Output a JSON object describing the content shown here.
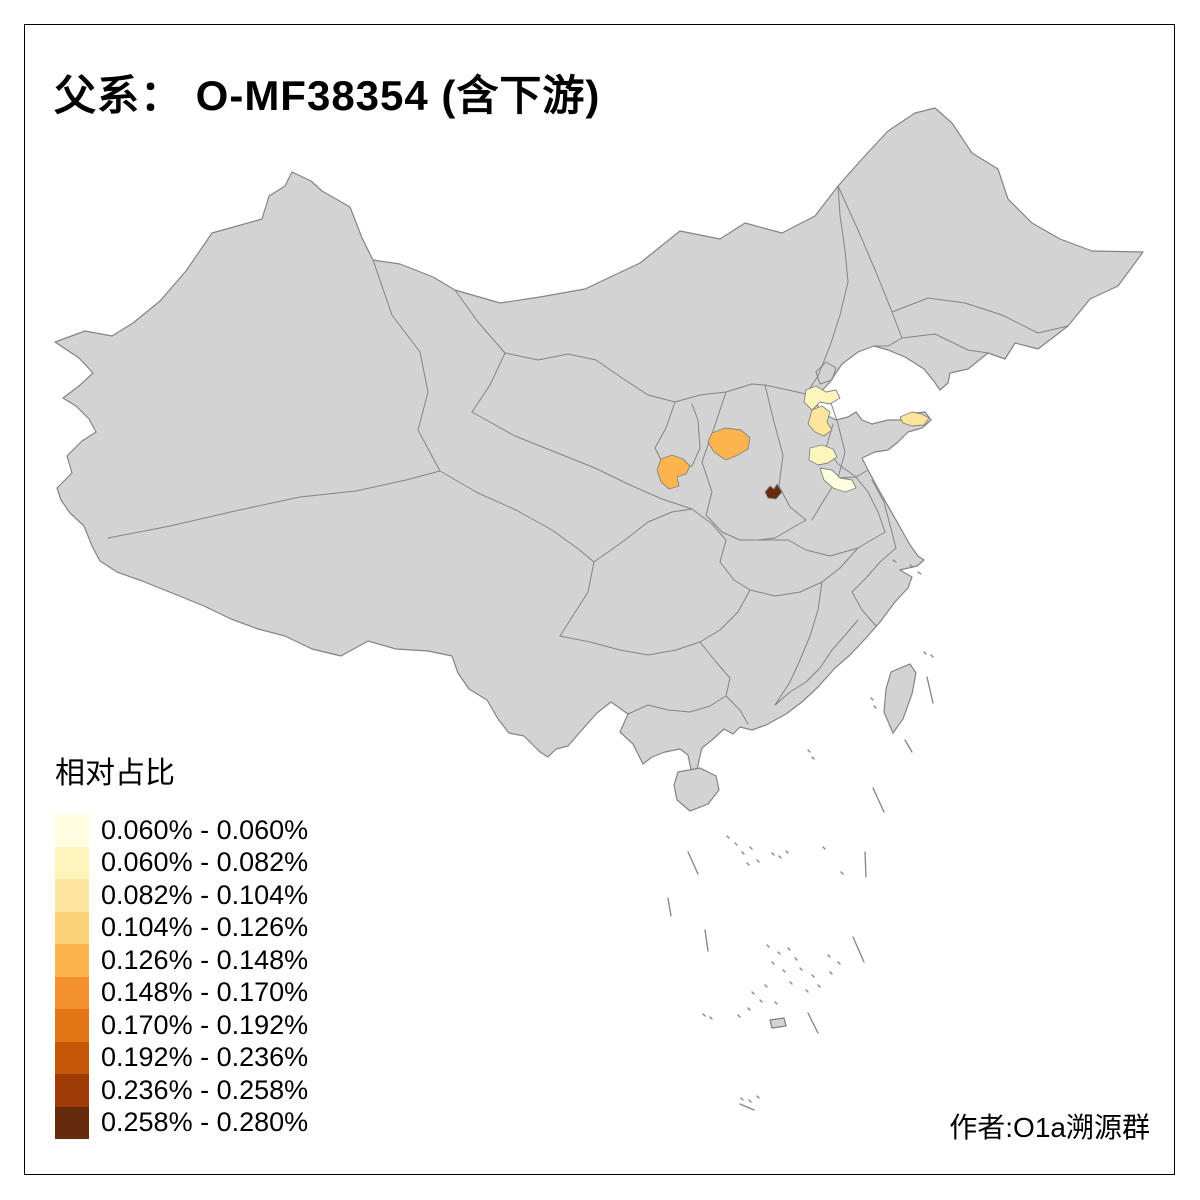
{
  "title": "父系： O-MF38354 (含下游)",
  "legend": {
    "title": "相对占比",
    "items": [
      {
        "label": "0.060% - 0.060%",
        "color": "#FFFEE0"
      },
      {
        "label": "0.060% - 0.082%",
        "color": "#FEF5BC"
      },
      {
        "label": "0.082% - 0.104%",
        "color": "#FDE69C"
      },
      {
        "label": "0.104% - 0.126%",
        "color": "#FDD276"
      },
      {
        "label": "0.126% - 0.148%",
        "color": "#FDB44E"
      },
      {
        "label": "0.148% - 0.170%",
        "color": "#F2912D"
      },
      {
        "label": "0.170% - 0.192%",
        "color": "#E27613"
      },
      {
        "label": "0.192% - 0.236%",
        "color": "#C55607"
      },
      {
        "label": "0.236% - 0.258%",
        "color": "#9E3A04"
      },
      {
        "label": "0.258% - 0.280%",
        "color": "#662B0C"
      }
    ]
  },
  "credit": "作者:O1a溯源群",
  "map": {
    "land_color": "#D3D3D3",
    "border_color": "#848484",
    "sea_color": "#FFFFFF",
    "frame_color": "#000000",
    "regions": [
      {
        "id": "highlight-west-small",
        "legend_index": 4
      },
      {
        "id": "highlight-west-large",
        "legend_index": 4
      },
      {
        "id": "highlight-dark",
        "legend_index": 9
      },
      {
        "id": "highlight-north-upper",
        "legend_index": 1
      },
      {
        "id": "highlight-north-mid",
        "legend_index": 2
      },
      {
        "id": "highlight-north-lower",
        "legend_index": 1
      },
      {
        "id": "highlight-palest",
        "legend_index": 0
      },
      {
        "id": "highlight-peninsula-tip",
        "legend_index": 2
      }
    ]
  }
}
